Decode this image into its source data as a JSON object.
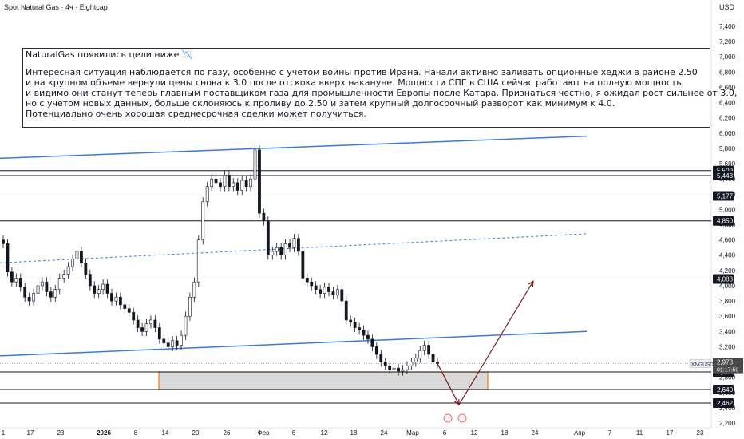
{
  "header": {
    "title": "Spot Natural Gas · 4ч · Eightcap",
    "currency": "USD"
  },
  "note": {
    "title": "NaturalGas появились цели ниже",
    "emoji": "📉",
    "lines": [
      "Интересная ситуация наблюдается по газу, особенно с учетом войны против Ирана. Начали активно заливать опционные хеджи в районе 2.50",
      "и на крупном объеме вернули цены снова к 3.0 после отскока вверх накануне. Мощности СПГ в США сейчас работают на полную мощность",
      "и видимо они станут теперь главным поставщиком газа для промышленности Европы после Катара. Признаться честно, я ожидал рост сильнее от 3.0,",
      "но с учетом новых данных, больше склоняюсь к проливу до 2.50 и затем крупный долгосрочный разворот как минимум к 4.0.",
      "Потенциально очень хорошая среднесрочная сделки может получиться."
    ]
  },
  "chart_data": {
    "type": "candlestick",
    "symbol": "XNGUSD",
    "price_axis": {
      "ticks": [
        "7,400",
        "7,200",
        "7,000",
        "6,800",
        "6,600",
        "6,400",
        "6,200",
        "6,000",
        "5,800",
        "5,600",
        "5,400",
        "5,200",
        "5,000",
        "4,800",
        "4,600",
        "4,400",
        "4,200",
        "4,000",
        "3,800",
        "3,600",
        "3,400",
        "3,200",
        "3,000",
        "2,800",
        "2,600",
        "2,400",
        "2,200"
      ],
      "tick_values": [
        7.4,
        7.2,
        7.0,
        6.8,
        6.6,
        6.4,
        6.2,
        6.0,
        5.8,
        5.6,
        5.4,
        5.2,
        5.0,
        4.8,
        4.6,
        4.4,
        4.2,
        4.0,
        3.8,
        3.6,
        3.4,
        3.2,
        3.0,
        2.8,
        2.6,
        2.4,
        2.2
      ],
      "range": [
        2.2,
        7.5
      ]
    },
    "time_axis": {
      "labels": [
        "1",
        "17",
        "23",
        "2026",
        "8",
        "14",
        "20",
        "26",
        "Фев",
        "6",
        "12",
        "18",
        "24",
        "Мар",
        "6",
        "12",
        "18",
        "24",
        "Апр",
        "7",
        "11",
        "17",
        "23"
      ]
    },
    "horizontal_levels": [
      {
        "price": 5.509,
        "label": "5,509"
      },
      {
        "price": 5.443,
        "label": "5,443"
      },
      {
        "price": 5.177,
        "label": "5,177"
      },
      {
        "price": 4.85,
        "label": "4,850"
      },
      {
        "price": 4.088,
        "label": "4,088"
      },
      {
        "price": 2.869,
        "label": "2,869"
      },
      {
        "price": 2.64,
        "label": "2,640"
      },
      {
        "price": 2.462,
        "label": "2,462"
      }
    ],
    "current_price": {
      "symbol": "XNGUSD",
      "price": 2.978,
      "label": "2,978",
      "countdown": "01:17:50"
    },
    "zone": {
      "top": 2.869,
      "bottom": 2.64
    },
    "closes": [
      4.55,
      4.18,
      4.05,
      4.1,
      3.98,
      3.85,
      3.8,
      3.9,
      4.0,
      4.05,
      3.92,
      3.85,
      3.95,
      4.1,
      4.15,
      4.25,
      4.35,
      4.45,
      4.3,
      4.15,
      4.0,
      3.9,
      3.95,
      4.02,
      3.9,
      3.8,
      3.85,
      3.75,
      3.7,
      3.65,
      3.55,
      3.45,
      3.4,
      3.5,
      3.55,
      3.45,
      3.3,
      3.25,
      3.2,
      3.28,
      3.22,
      3.35,
      3.6,
      3.85,
      4.05,
      4.6,
      5.1,
      5.3,
      5.4,
      5.35,
      5.3,
      5.45,
      5.3,
      5.35,
      5.25,
      5.38,
      5.3,
      5.4,
      5.78,
      4.95,
      4.85,
      4.4,
      4.45,
      4.5,
      4.4,
      4.55,
      4.5,
      4.62,
      4.45,
      4.1,
      4.05,
      4.0,
      3.95,
      3.9,
      3.98,
      3.92,
      3.88,
      3.95,
      3.8,
      3.55,
      3.52,
      3.45,
      3.42,
      3.35,
      3.3,
      3.2,
      3.1,
      3.0,
      2.95,
      2.9,
      2.92,
      2.88,
      2.9,
      2.95,
      3.0,
      3.05,
      3.15,
      3.22,
      3.1,
      3.0,
      2.978
    ],
    "trend_lines": [
      {
        "from": [
          0,
          5.67
        ],
        "to": [
          735,
          5.96
        ],
        "style": "solid"
      },
      {
        "from": [
          0,
          4.3
        ],
        "to": [
          735,
          4.68
        ],
        "style": "dashed"
      },
      {
        "from": [
          0,
          3.08
        ],
        "to": [
          735,
          3.4
        ],
        "style": "solid"
      }
    ],
    "projection": [
      [
        548,
        2.98
      ],
      [
        575,
        2.44
      ],
      [
        668,
        4.06
      ]
    ]
  },
  "colors": {
    "blue": "#2962ff",
    "trend": "#3a7bd5",
    "projection": "#7b1c1c",
    "zone_border": "#f57c00",
    "zone_fill": "#d9d9d9",
    "tag_dark": "#131722",
    "tag_current": "#4a4a4a"
  }
}
